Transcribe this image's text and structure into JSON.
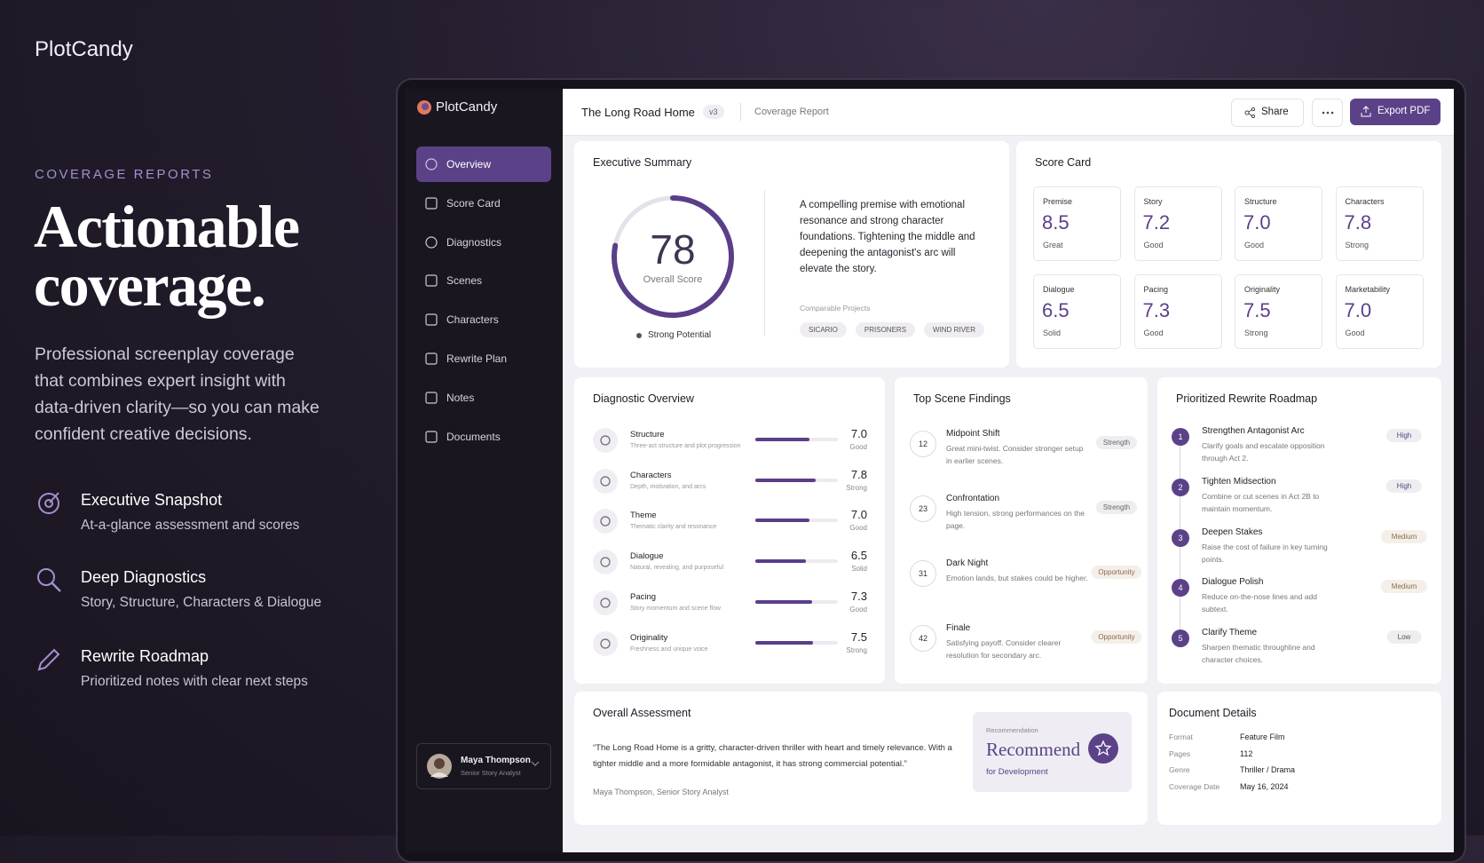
{
  "brand": "PlotCandy",
  "hero": {
    "eyebrow": "COVERAGE REPORTS",
    "headline_lines": [
      "Actionable",
      "coverage."
    ],
    "description": "Professional screenplay coverage that combines expert insight with data-driven clarity—so you can make confident creative decisions.",
    "features": [
      {
        "title": "Executive Snapshot",
        "desc": "At-a-glance assessment and scores"
      },
      {
        "title": "Deep Diagnostics",
        "desc": "Story, Structure, Characters & Dialogue"
      },
      {
        "title": "Rewrite Roadmap",
        "desc": "Prioritized notes with clear next steps"
      }
    ]
  },
  "app": {
    "brand": "PlotCandy",
    "nav": [
      "Overview",
      "Score Card",
      "Diagnostics",
      "Scenes",
      "Characters",
      "Rewrite Plan",
      "Notes",
      "Documents"
    ],
    "user": {
      "name": "Maya Thompson",
      "role": "Senior Story Analyst"
    },
    "header": {
      "project": "The Long Road Home",
      "version": "v3",
      "section": "Coverage Report",
      "share": "Share",
      "export": "Export PDF"
    },
    "executive_summary": {
      "title": "Executive Summary",
      "overall_score": 78,
      "score_label": "Overall Score",
      "potential": "Strong Potential",
      "summary": "A compelling premise with emotional resonance and strong character foundations. Tightening the middle and deepening the antagonist's arc will elevate the story.",
      "comparables_label": "Comparable Projects",
      "comparables": [
        "SICARIO",
        "PRISONERS",
        "WIND RIVER"
      ]
    },
    "score_card": {
      "title": "Score Card",
      "items": [
        {
          "label": "Premise",
          "score": "8.5",
          "rating": "Great"
        },
        {
          "label": "Story",
          "score": "7.2",
          "rating": "Good"
        },
        {
          "label": "Structure",
          "score": "7.0",
          "rating": "Good"
        },
        {
          "label": "Characters",
          "score": "7.8",
          "rating": "Strong"
        },
        {
          "label": "Dialogue",
          "score": "6.5",
          "rating": "Solid"
        },
        {
          "label": "Pacing",
          "score": "7.3",
          "rating": "Good"
        },
        {
          "label": "Originality",
          "score": "7.5",
          "rating": "Strong"
        },
        {
          "label": "Marketability",
          "score": "7.0",
          "rating": "Good"
        }
      ]
    },
    "diagnostics": {
      "title": "Diagnostic Overview",
      "items": [
        {
          "name": "Structure",
          "desc": "Three-act structure and plot progression",
          "value": 7,
          "value_label": "7.0",
          "rating": "Good"
        },
        {
          "name": "Characters",
          "desc": "Depth, motivation, and arcs",
          "value": 7.8,
          "value_label": "7.8",
          "rating": "Strong"
        },
        {
          "name": "Theme",
          "desc": "Thematic clarity and resonance",
          "value": 7,
          "value_label": "7.0",
          "rating": "Good"
        },
        {
          "name": "Dialogue",
          "desc": "Natural, revealing, and purposeful",
          "value": 6.5,
          "value_label": "6.5",
          "rating": "Solid"
        },
        {
          "name": "Pacing",
          "desc": "Story momentum and scene flow",
          "value": 7.3,
          "value_label": "7.3",
          "rating": "Good"
        },
        {
          "name": "Originality",
          "desc": "Freshness and unique voice",
          "value": 7.5,
          "value_label": "7.5",
          "rating": "Strong"
        }
      ]
    },
    "scene_findings": {
      "title": "Top Scene Findings",
      "items": [
        {
          "scene": "12",
          "title": "Midpoint Shift",
          "desc": "Great mini-twist. Consider stronger setup in earlier scenes.",
          "tag": "Strength"
        },
        {
          "scene": "23",
          "title": "Confrontation",
          "desc": "High tension, strong performances on the page.",
          "tag": "Strength"
        },
        {
          "scene": "31",
          "title": "Dark Night",
          "desc": "Emotion lands, but stakes could be higher.",
          "tag": "Opportunity"
        },
        {
          "scene": "42",
          "title": "Finale",
          "desc": "Satisfying payoff. Consider clearer resolution for secondary arc.",
          "tag": "Opportunity"
        }
      ]
    },
    "roadmap": {
      "title": "Prioritized Rewrite Roadmap",
      "items": [
        {
          "step": "1",
          "title": "Strengthen Antagonist Arc",
          "desc": "Clarify goals and escalate opposition through Act 2.",
          "priority": "High"
        },
        {
          "step": "2",
          "title": "Tighten Midsection",
          "desc": "Combine or cut scenes in Act 2B to maintain momentum.",
          "priority": "High"
        },
        {
          "step": "3",
          "title": "Deepen Stakes",
          "desc": "Raise the cost of failure in key turning points.",
          "priority": "Medium"
        },
        {
          "step": "4",
          "title": "Dialogue Polish",
          "desc": "Reduce on-the-nose lines and add subtext.",
          "priority": "Medium"
        },
        {
          "step": "5",
          "title": "Clarify Theme",
          "desc": "Sharpen thematic throughline and character choices.",
          "priority": "Low"
        }
      ]
    },
    "assessment": {
      "title": "Overall Assessment",
      "quote": "“The Long Road Home is a gritty, character-driven thriller with heart and timely relevance. With a tighter middle and a more formidable antagonist, it has strong commercial potential.”",
      "author": "Maya Thompson, Senior Story Analyst",
      "recommendation_label": "Recommendation",
      "recommendation": "Recommend",
      "recommendation_sub": "for Development"
    },
    "document": {
      "title": "Document Details",
      "fields": [
        {
          "label": "Format",
          "value": "Feature Film"
        },
        {
          "label": "Pages",
          "value": "112"
        },
        {
          "label": "Genre",
          "value": "Thriller / Drama"
        },
        {
          "label": "Coverage Date",
          "value": "May 16, 2024"
        }
      ]
    }
  }
}
